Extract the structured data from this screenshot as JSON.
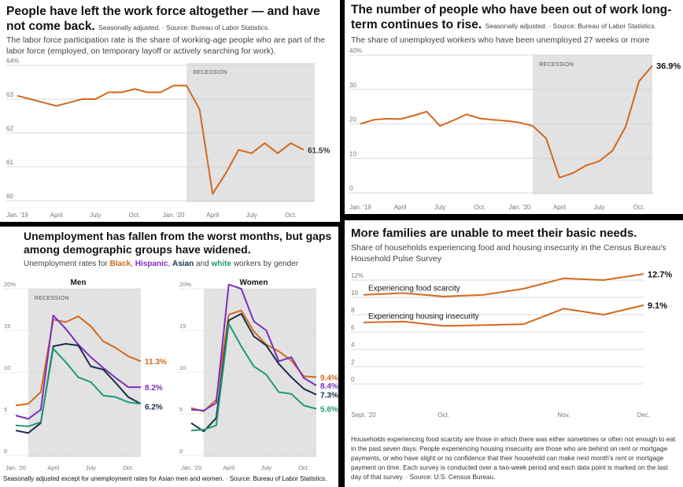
{
  "colors": {
    "orange": "#d2691e",
    "purple": "#7a2fbf",
    "navy": "#1b2f4b",
    "green": "#1f9a78",
    "shade": "#e2e2e2",
    "grid": "#cfcfcf",
    "muted": "#777777"
  },
  "panel1": {
    "title": "People have left the work force altogether — and have not come back.",
    "note": "Seasonally adjusted.  ·  Source: Bureau of Labor Statistics.",
    "subtitle": "The labor force participation rate is the share of working-age people who are part of the labor force (employed, on temporary layoff or actively searching for work)."
  },
  "panel2": {
    "title": "The number of people who have been out of work long-term continues to rise.",
    "note": "Seasonally adjusted.  ·  Source: Bureau of Labor Statistics.",
    "subtitle": "The share of unemployed workers who have been unemployed 27 weeks or more"
  },
  "panel3": {
    "title": "Unemployment has fallen from the worst months, but gaps among demographic groups have widened.",
    "subtitle_pre": "Unemployment rates for ",
    "sub_black": "Black",
    "sub_hispanic": "Hispanic",
    "sub_asian": "Asian",
    "sub_and": " and ",
    "sub_white": "white",
    "sub_post": " workers by gender",
    "footnote": "Seasonally adjusted except for unemployment rates for Asian men and women.  ·  Source: Bureau of Labor Statistics."
  },
  "panel4": {
    "title": "More families are unable to meet their basic needs.",
    "subtitle": "Share of households experiencing food and housing insecurity in the Census Bureau's Household Pulse Survey",
    "footnote": "Households experiencing food scarcity are those in which there was either sometimes or often not enough to eat in the past seven days. People experiencing housing insecurity are those who are behind on rent or mortgage payments, or who have slight or no confidence that their household can make next month's rent or mortgage payment on time. Each survey is conducted over a two-week period and each data point is marked on the last day of that survey.  ·  Source: U.S. Census Bureau."
  },
  "chart_data": [
    {
      "id": "lfpr",
      "type": "line",
      "title": "People have left the work force altogether — and have not come back.",
      "ylim": [
        60,
        64
      ],
      "yticks": [
        "60",
        "61",
        "62",
        "63",
        "64%"
      ],
      "xlabels": [
        "Jan. '19",
        "April",
        "July",
        "Oct.",
        "Jan. '20",
        "April",
        "July",
        "Oct."
      ],
      "recession_label": "RECESSION",
      "recession_months": [
        13,
        22
      ],
      "series": [
        {
          "values": [
            63.1,
            63.0,
            62.9,
            62.8,
            62.9,
            63.0,
            63.0,
            63.2,
            63.2,
            63.3,
            63.2,
            63.2,
            63.4,
            63.4,
            62.7,
            60.2,
            60.8,
            61.5,
            61.4,
            61.7,
            61.4,
            61.7,
            61.5
          ]
        }
      ],
      "end_label": "61.5%"
    },
    {
      "id": "longterm",
      "type": "line",
      "title": "The number of people who have been out of work long-term continues to rise.",
      "ylim": [
        0,
        40
      ],
      "yticks": [
        "0",
        "10",
        "20",
        "30",
        "40%"
      ],
      "xlabels": [
        "Jan. '19",
        "April",
        "July",
        "Oct.",
        "Jan. '20",
        "April",
        "July",
        "Oct."
      ],
      "recession_label": "RECESSION",
      "recession_months": [
        13,
        22
      ],
      "series": [
        {
          "values": [
            20.0,
            21.2,
            21.5,
            21.4,
            22.4,
            23.6,
            19.4,
            21.0,
            22.8,
            21.6,
            21.2,
            20.9,
            20.4,
            19.4,
            15.8,
            4.4,
            5.7,
            7.9,
            9.2,
            12.2,
            19.3,
            32.4,
            36.9
          ]
        }
      ],
      "end_label": "36.9%"
    },
    {
      "id": "men",
      "type": "line",
      "title": "Men",
      "ylim": [
        0,
        20
      ],
      "yticks": [
        "0",
        "5",
        "10",
        "15",
        "20%"
      ],
      "xlabels": [
        "Jan. '20",
        "April",
        "July",
        "Oct."
      ],
      "recession_label": "RECESSION",
      "recession_months": [
        1,
        10
      ],
      "series": [
        {
          "name": "Black",
          "color_key": "orange",
          "values": [
            6.0,
            6.2,
            7.6,
            16.3,
            16.0,
            16.7,
            15.5,
            13.7,
            12.9,
            11.9,
            11.3
          ],
          "end_label": "11.3%"
        },
        {
          "name": "Hispanic",
          "color_key": "purple",
          "values": [
            4.8,
            4.4,
            5.5,
            16.8,
            15.2,
            13.3,
            11.8,
            10.5,
            9.3,
            8.2,
            8.2
          ],
          "end_label": "8.2%"
        },
        {
          "name": "Asian",
          "color_key": "navy",
          "values": [
            3.0,
            2.7,
            3.9,
            13.1,
            13.4,
            13.2,
            10.7,
            10.3,
            8.7,
            7.0,
            6.2
          ],
          "end_label": "6.2%"
        },
        {
          "name": "White",
          "color_key": "green",
          "values": [
            3.6,
            3.5,
            4.0,
            12.8,
            11.2,
            9.4,
            8.8,
            7.2,
            7.0,
            6.4,
            6.2
          ]
        }
      ]
    },
    {
      "id": "women",
      "type": "line",
      "title": "Women",
      "ylim": [
        0,
        20
      ],
      "yticks": [
        "0",
        "5",
        "10",
        "15",
        "20%"
      ],
      "xlabels": [
        "Jan. '20",
        "April",
        "July",
        "Oct."
      ],
      "recession_label": "",
      "recession_months": [
        1,
        10
      ],
      "series": [
        {
          "name": "Black",
          "color_key": "orange",
          "values": [
            5.7,
            5.3,
            6.7,
            16.9,
            17.4,
            14.9,
            13.3,
            12.5,
            11.4,
            9.5,
            9.4
          ],
          "end_label": "9.4%"
        },
        {
          "name": "Hispanic",
          "color_key": "purple",
          "values": [
            5.5,
            5.4,
            6.3,
            20.5,
            20.0,
            16.1,
            15.0,
            11.3,
            11.8,
            9.3,
            8.4
          ],
          "end_label": "8.4%"
        },
        {
          "name": "Asian",
          "color_key": "navy",
          "values": [
            3.9,
            2.9,
            4.5,
            16.2,
            17.0,
            14.3,
            13.2,
            11.0,
            9.4,
            8.0,
            7.3
          ],
          "end_label": "7.3%"
        },
        {
          "name": "White",
          "color_key": "green",
          "values": [
            3.0,
            3.1,
            3.6,
            15.8,
            13.1,
            10.7,
            9.7,
            7.6,
            7.4,
            6.0,
            5.6
          ],
          "end_label": "5.6%"
        }
      ]
    },
    {
      "id": "pulse",
      "type": "line",
      "title": "More families are unable to meet their basic needs.",
      "ylim": [
        0,
        12
      ],
      "yticks": [
        "0",
        "2",
        "4",
        "6",
        "8",
        "10",
        "12%"
      ],
      "xlabels": [
        "Sept. '20",
        "Oct.",
        "Nov.",
        "Dec."
      ],
      "series": [
        {
          "name": "Experiencing food scarcity",
          "values": [
            10.3,
            10.5,
            10.1,
            10.3,
            11.0,
            12.2,
            12.0,
            12.7
          ],
          "end_label": "12.7%"
        },
        {
          "name": "Experiencing housing insecurity",
          "values": [
            7.1,
            7.2,
            6.7,
            6.8,
            6.9,
            8.7,
            8.0,
            9.1
          ],
          "end_label": "9.1%"
        }
      ]
    }
  ]
}
